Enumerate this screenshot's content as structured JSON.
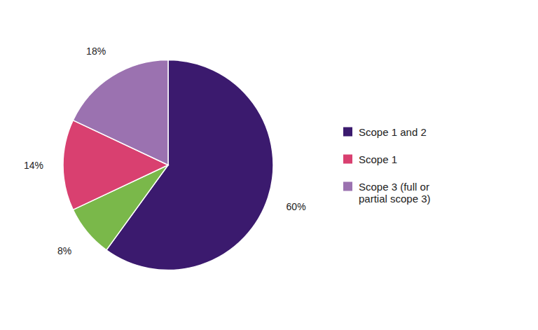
{
  "chart_data": {
    "type": "pie",
    "categories": [
      "Scope 1 and 2",
      null,
      "Scope 1",
      "Scope 3 (full or\npartial scope 3)"
    ],
    "values": [
      60,
      8,
      14,
      18
    ],
    "value_labels": [
      "60%",
      "8%",
      "14%",
      "18%"
    ],
    "colors": [
      "#3b1a6e",
      "#7ab84a",
      "#d94070",
      "#9b72b0"
    ],
    "data_labels": true,
    "legend": "right"
  }
}
